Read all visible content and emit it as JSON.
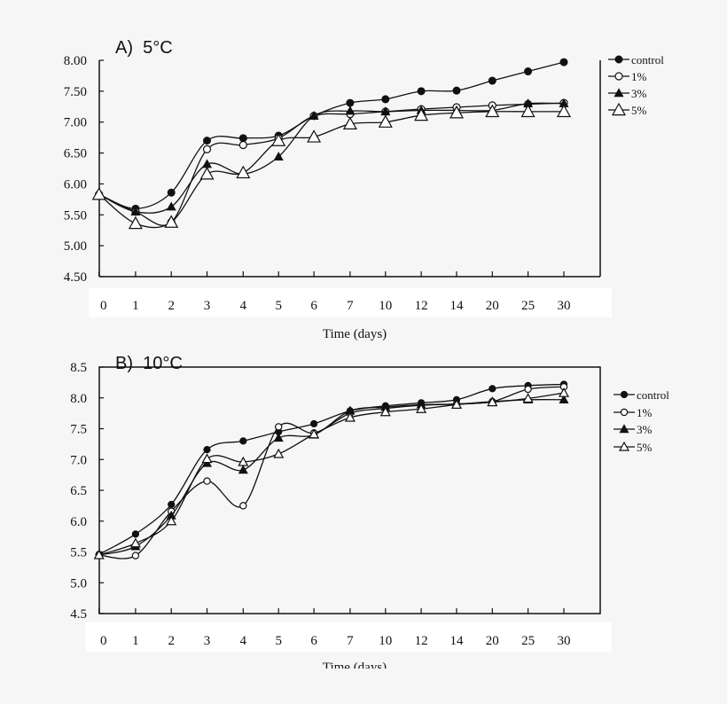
{
  "chart_data": [
    {
      "type": "line",
      "title": "A)  5°C",
      "xlabel": "Time (days)",
      "ylabel": "",
      "categories": [
        "0",
        "1",
        "2",
        "3",
        "4",
        "5",
        "6",
        "7",
        "10",
        "12",
        "14",
        "20",
        "25",
        "30"
      ],
      "ylim": [
        4.5,
        8.0
      ],
      "yticks": [
        "8.00",
        "7.50",
        "7.00",
        "6.50",
        "6.00",
        "5.50",
        "5.00",
        "4.50"
      ],
      "grid": false,
      "legend_position": "right",
      "series": [
        {
          "name": "control",
          "marker": "filled-circle",
          "values": [
            5.83,
            5.6,
            5.86,
            6.7,
            6.74,
            6.78,
            7.1,
            7.31,
            7.37,
            7.5,
            7.51,
            7.67,
            7.82,
            7.97
          ]
        },
        {
          "name": "1%",
          "marker": "open-circle",
          "values": [
            5.83,
            5.55,
            5.38,
            6.56,
            6.63,
            6.74,
            7.1,
            7.13,
            7.17,
            7.21,
            7.24,
            7.27,
            7.29,
            7.31
          ]
        },
        {
          "name": "3%",
          "marker": "filled-triangle",
          "values": [
            5.83,
            5.55,
            5.63,
            6.32,
            6.16,
            6.44,
            7.1,
            7.18,
            7.17,
            7.19,
            7.19,
            7.19,
            7.3,
            7.3
          ]
        },
        {
          "name": "5%",
          "marker": "open-triangle",
          "values": [
            5.83,
            5.36,
            5.38,
            6.16,
            6.18,
            6.7,
            6.76,
            6.97,
            7.0,
            7.11,
            7.15,
            7.17,
            7.17,
            7.17
          ]
        }
      ]
    },
    {
      "type": "line",
      "title": "B)  10°C",
      "xlabel": "Time (days)",
      "ylabel": "",
      "categories": [
        "0",
        "1",
        "2",
        "3",
        "4",
        "5",
        "6",
        "7",
        "10",
        "12",
        "14",
        "20",
        "25",
        "30"
      ],
      "ylim": [
        4.5,
        8.5
      ],
      "yticks": [
        "8.5",
        "8.0",
        "7.5",
        "7.0",
        "6.5",
        "6.0",
        "5.5",
        "5.0",
        "4.5"
      ],
      "grid": false,
      "legend_position": "right",
      "series": [
        {
          "name": "control",
          "marker": "filled-circle",
          "values": [
            5.46,
            5.79,
            6.27,
            7.16,
            7.3,
            7.45,
            7.58,
            7.79,
            7.87,
            7.92,
            7.97,
            8.15,
            8.2,
            8.22
          ]
        },
        {
          "name": "1%",
          "marker": "open-circle",
          "values": [
            5.45,
            5.44,
            6.16,
            6.65,
            6.25,
            7.53,
            7.43,
            7.75,
            7.83,
            7.88,
            7.9,
            7.94,
            8.14,
            8.18
          ]
        },
        {
          "name": "3%",
          "marker": "filled-triangle",
          "values": [
            5.45,
            5.59,
            6.09,
            6.94,
            6.83,
            7.35,
            7.4,
            7.79,
            7.85,
            7.89,
            7.9,
            7.94,
            7.97,
            7.97
          ]
        },
        {
          "name": "5%",
          "marker": "open-triangle",
          "values": [
            5.45,
            5.64,
            6.0,
            7.01,
            6.96,
            7.09,
            7.41,
            7.68,
            7.77,
            7.82,
            7.89,
            7.93,
            7.99,
            8.08
          ]
        }
      ]
    }
  ]
}
